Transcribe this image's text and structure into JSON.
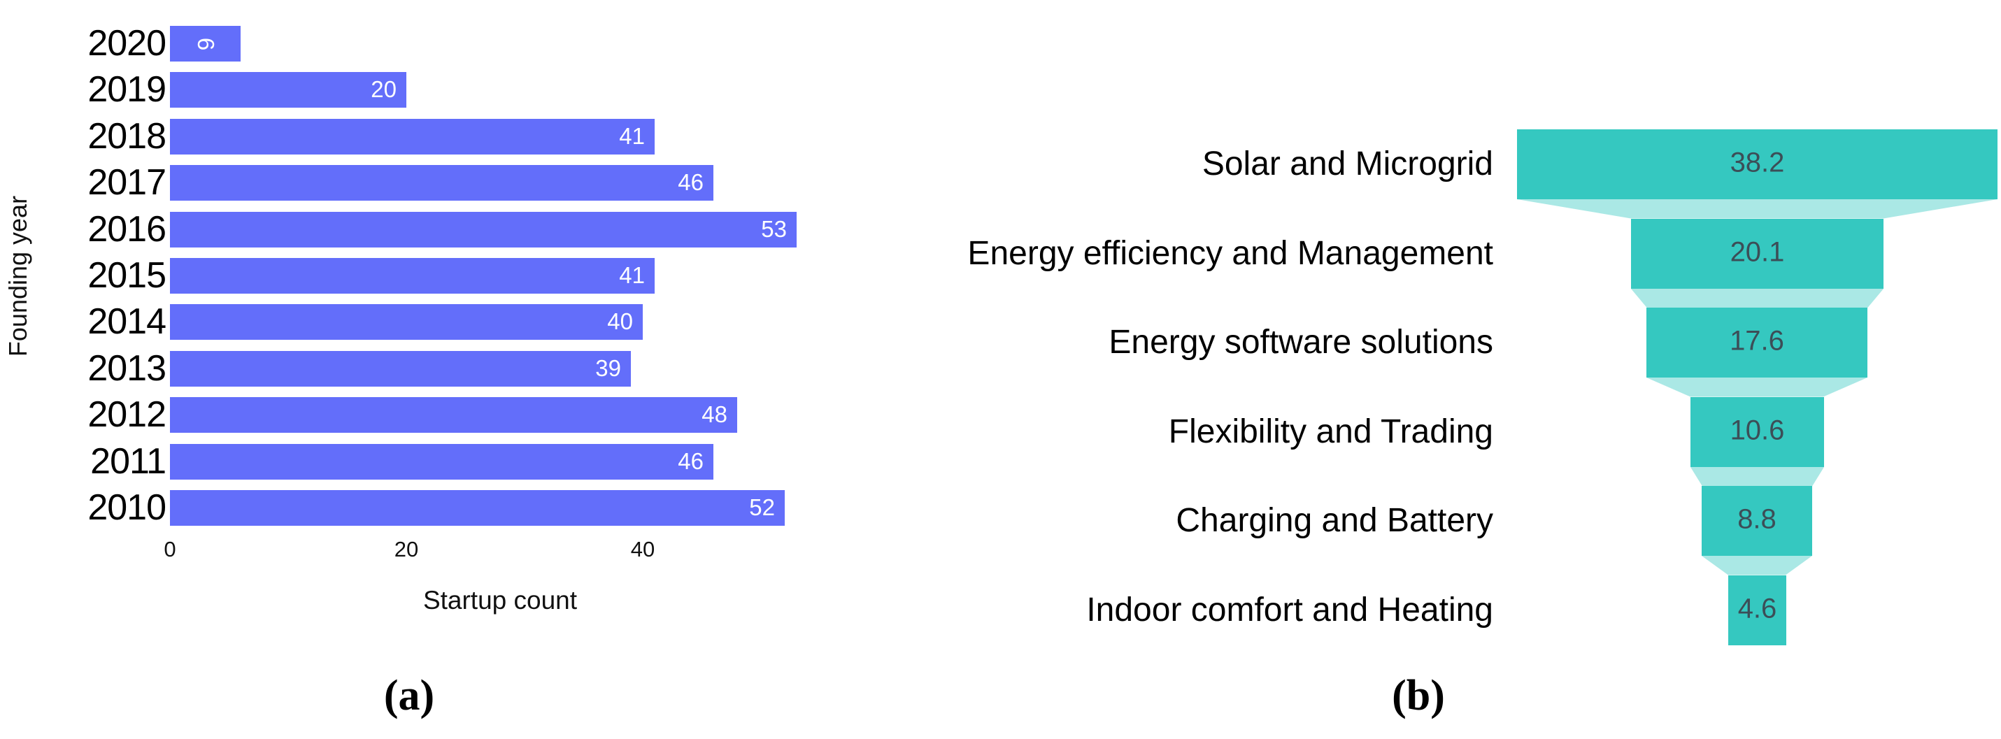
{
  "figure": {
    "caption_a": "(a)",
    "caption_b": "(b)"
  },
  "chart_data": [
    {
      "id": "a",
      "type": "bar",
      "orientation": "horizontal",
      "xlabel": "Startup count",
      "ylabel": "Founding year",
      "categories": [
        "2020",
        "2019",
        "2018",
        "2017",
        "2016",
        "2015",
        "2014",
        "2013",
        "2012",
        "2011",
        "2010"
      ],
      "values": [
        6,
        20,
        41,
        46,
        53,
        41,
        40,
        39,
        48,
        46,
        52
      ],
      "x_ticks": [
        0,
        20,
        40
      ],
      "xlim": [
        0,
        54.5
      ],
      "grid": false,
      "legend": "none",
      "bar_color": "#636efa",
      "bar_label_color": "#ffffff"
    },
    {
      "id": "b",
      "type": "funnel",
      "categories": [
        "Solar and Microgrid",
        "Energy efficiency and Management",
        "Energy software solutions",
        "Flexibility and Trading",
        "Charging and Battery",
        "Indoor comfort and Heating"
      ],
      "values": [
        38.2,
        20.1,
        17.6,
        10.6,
        8.8,
        4.6
      ],
      "grid": false,
      "legend": "none",
      "segment_color": "#35c8c0",
      "connector_color": "rgba(53,200,192,0.42)",
      "value_label_color": "#3c4e57"
    }
  ]
}
